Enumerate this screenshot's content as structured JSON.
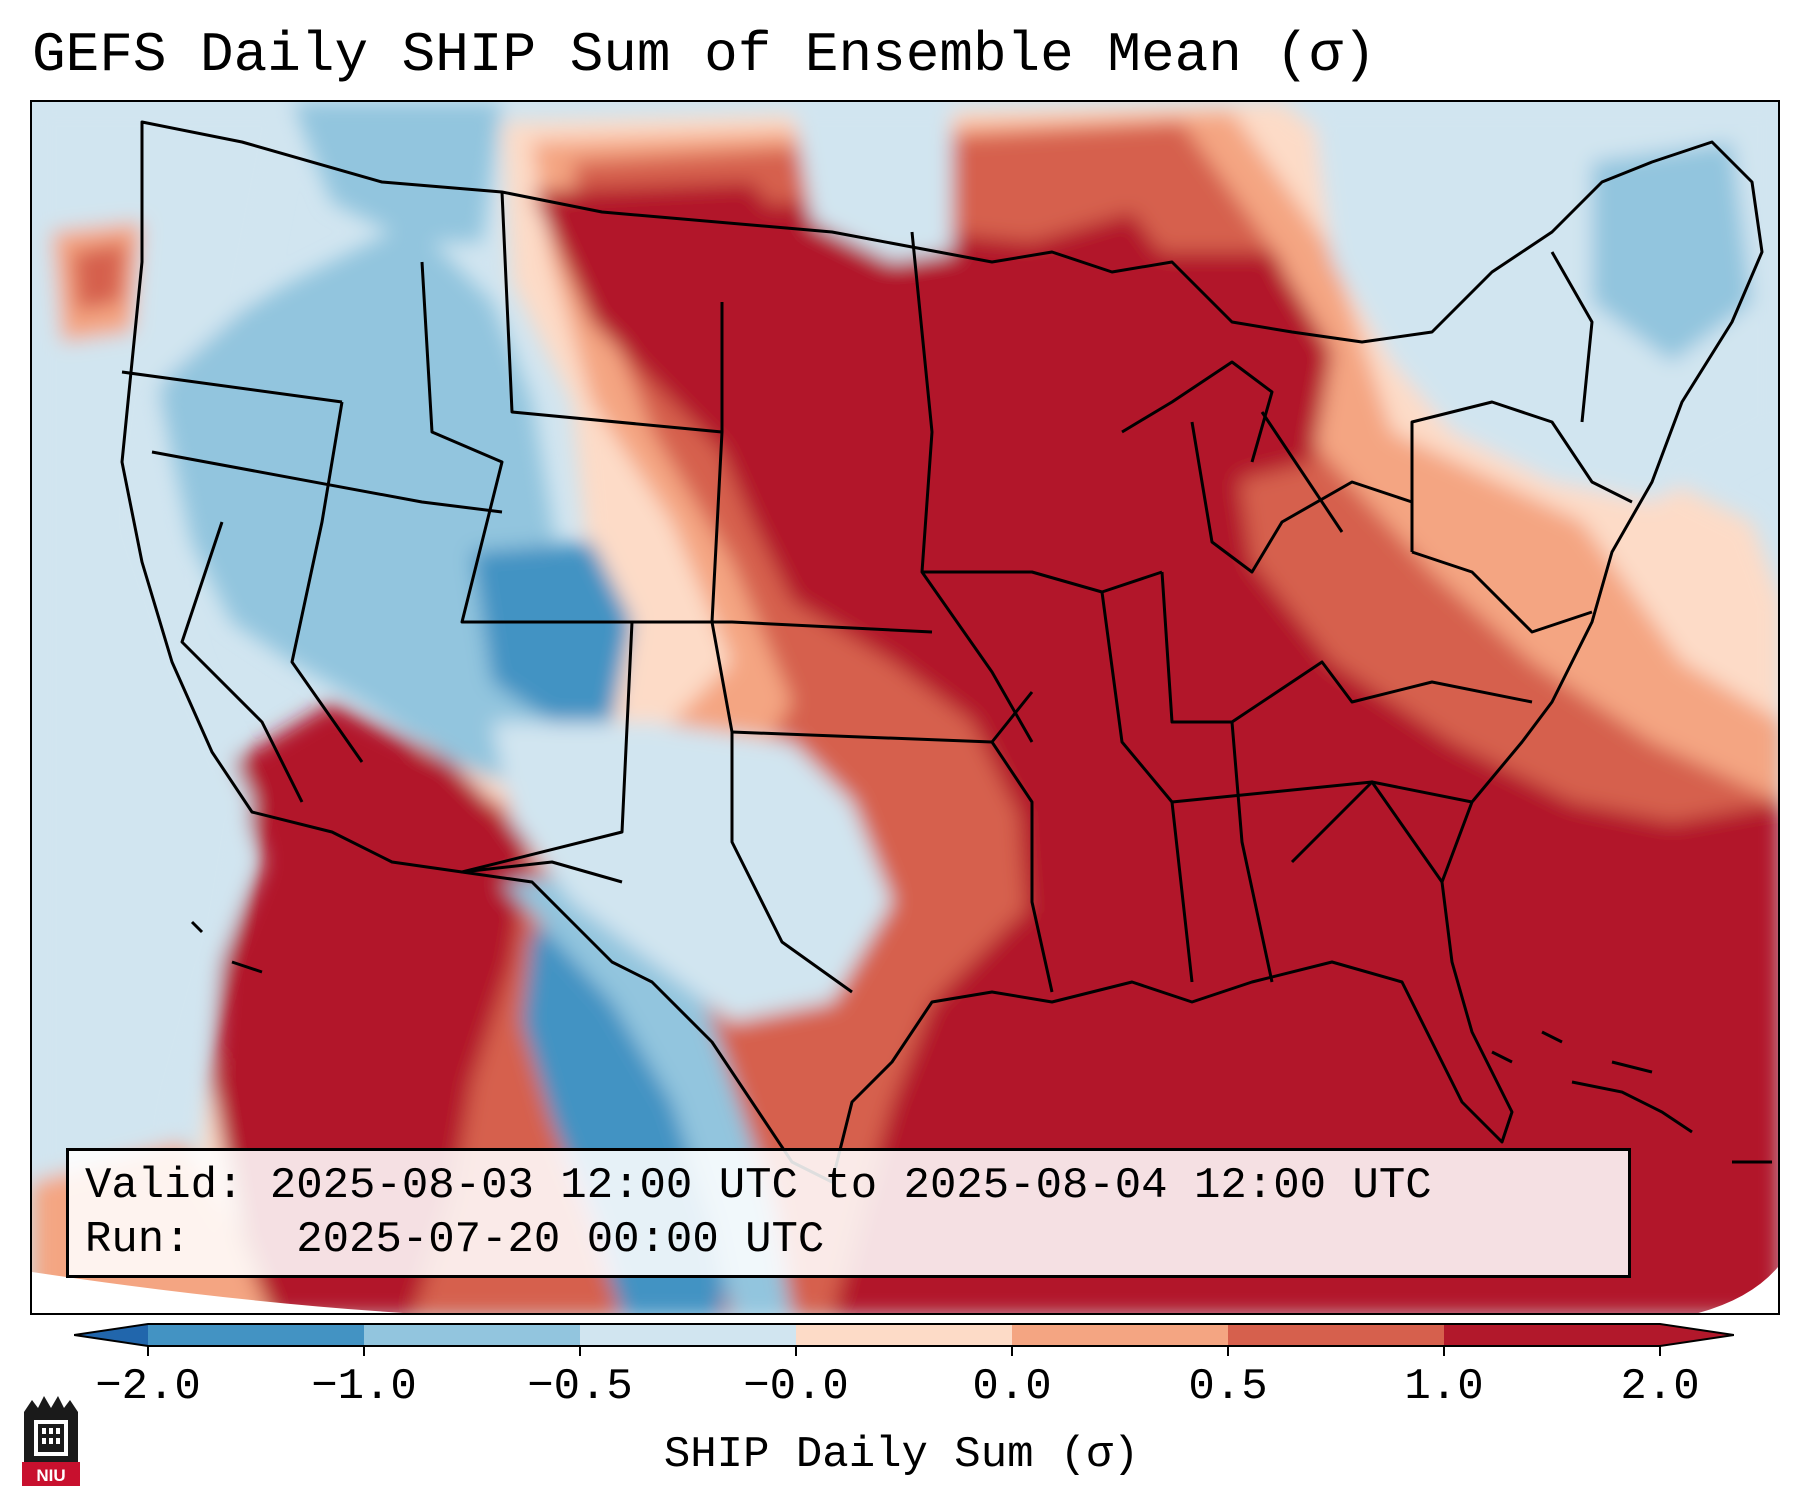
{
  "title": "GEFS Daily SHIP Sum of Ensemble Mean (σ)",
  "info": {
    "valid_label": "Valid:",
    "valid_value": "2025-08-03 12:00 UTC to 2025-08-04 12:00 UTC",
    "run_label": "Run:",
    "run_value": "2025-07-20 00:00 UTC"
  },
  "colorbar": {
    "label": "SHIP Daily Sum (σ)",
    "ticks": [
      "−2.0",
      "−1.0",
      "−0.5",
      "−0.0",
      "0.0",
      "0.5",
      "1.0",
      "2.0"
    ],
    "colors": [
      "#4393c3",
      "#92c5de",
      "#d1e5f0",
      "#f7f7f7",
      "#fddbc7",
      "#f4a582",
      "#d6604d",
      "#b2182b"
    ],
    "under_color": "#2166ac",
    "over_color": "#b2182b"
  },
  "logo": {
    "text": "NIU"
  }
}
